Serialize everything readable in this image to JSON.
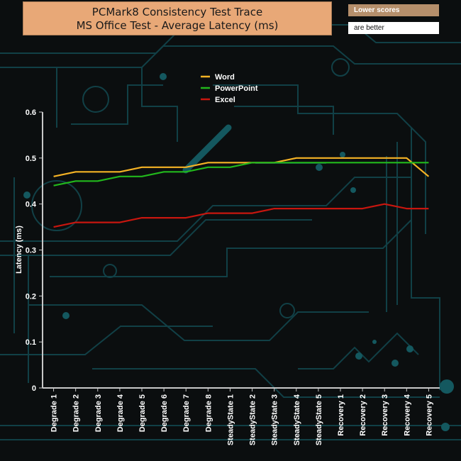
{
  "header": {
    "title_line1": "PCMark8 Consistency Test Trace",
    "title_line2": "MS Office Test -  Average Latency (ms)",
    "note_line1": "Lower scores",
    "note_line2": "are better"
  },
  "chart_data": {
    "type": "line",
    "title": "PCMark8 Consistency Test Trace MS Office Test - Average Latency (ms)",
    "xlabel": "",
    "ylabel": "Latency (ms)",
    "ylim": [
      0,
      0.6
    ],
    "yticks": [
      "0",
      "0.1",
      "0.2",
      "0.3",
      "0.4",
      "0.5",
      "0.6"
    ],
    "categories": [
      "Degrade 1",
      "Degrade 2",
      "Degrade 3",
      "Degrade 4",
      "Degrade 5",
      "Degrade 6",
      "Degrade 7",
      "Degrade 8",
      "SteadyState 1",
      "SteadyState 2",
      "SteadyState 3",
      "SteadyState 4",
      "SteadyState 5",
      "Recovery 1",
      "Recovery 2",
      "Recovery 3",
      "Recovery 4",
      "Recovery 5"
    ],
    "legend_position": "top-center",
    "grid": false,
    "series": [
      {
        "name": "Word",
        "color": "#f5b325",
        "values": [
          0.46,
          0.47,
          0.47,
          0.47,
          0.48,
          0.48,
          0.48,
          0.49,
          0.49,
          0.49,
          0.49,
          0.5,
          0.5,
          0.5,
          0.5,
          0.5,
          0.5,
          0.46
        ]
      },
      {
        "name": "PowerPoint",
        "color": "#22b81c",
        "values": [
          0.44,
          0.45,
          0.45,
          0.46,
          0.46,
          0.47,
          0.47,
          0.48,
          0.48,
          0.49,
          0.49,
          0.49,
          0.49,
          0.49,
          0.49,
          0.49,
          0.49,
          0.49
        ]
      },
      {
        "name": "Excel",
        "color": "#c8160f",
        "values": [
          0.35,
          0.36,
          0.36,
          0.36,
          0.37,
          0.37,
          0.37,
          0.38,
          0.38,
          0.38,
          0.39,
          0.39,
          0.39,
          0.39,
          0.39,
          0.4,
          0.39,
          0.39
        ]
      }
    ]
  }
}
